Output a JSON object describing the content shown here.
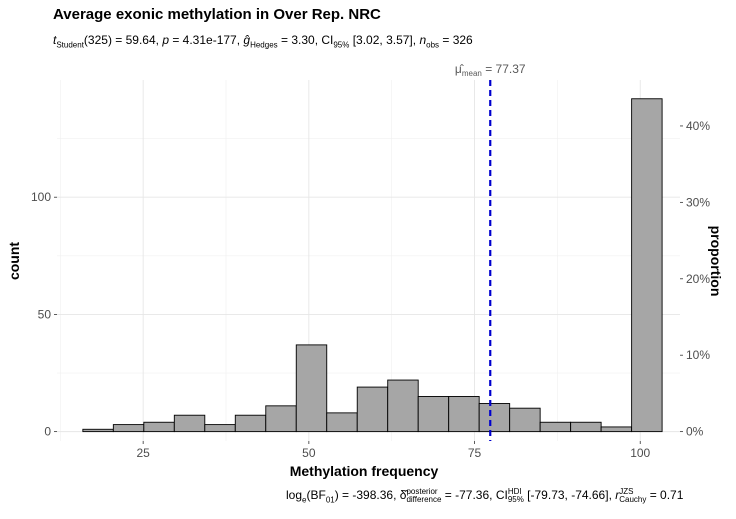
{
  "chart_data": {
    "type": "bar",
    "title": "Average exonic methylation in Over Rep. NRC",
    "subtitle": {
      "t_label": "t",
      "t_sub": "Student",
      "t_rest": "(325) = 59.64, ",
      "p_label": "p",
      "p_rest": " = 4.31e-177, ",
      "g_label": "ĝ",
      "g_sub": "Hedges",
      "g_rest": " = 3.30, CI",
      "ci_sub": "95%",
      "ci_rest": " [3.02, 3.57], ",
      "n_label": "n",
      "n_sub": "obs",
      "n_rest": " = 326"
    },
    "caption": {
      "bf_label": "log",
      "bf_sub": "e",
      "bf_mid": "(BF",
      "bf_sub2": "01",
      "bf_rest": ") = -398.36, ",
      "delta_label": "δ̂",
      "delta_sup": "posterior",
      "delta_sub": "difference",
      "delta_rest": " = -77.36, CI",
      "hdi_sup": "HDI",
      "hdi_sub": "95%",
      "hdi_rest": " [-79.73, -74.66], ",
      "r_label": "r",
      "r_sup": "JZS",
      "r_sub": "Cauchy",
      "r_rest": " = 0.71"
    },
    "xlabel": "Methylation frequency",
    "ylabel": "count",
    "y2label": "proportion",
    "xlim": [
      12,
      106
    ],
    "ylim": [
      -4,
      150
    ],
    "x_ticks": [
      25,
      50,
      75,
      100
    ],
    "x_tick_labels": [
      "25",
      "50",
      "75",
      "100"
    ],
    "y_ticks": [
      0,
      50,
      100
    ],
    "y_tick_labels": [
      "0",
      "50",
      "100"
    ],
    "y2_ticks": [
      0,
      10,
      20,
      30,
      40
    ],
    "y2_tick_labels": [
      "0%",
      "10%",
      "20%",
      "30%",
      "40%"
    ],
    "total_n": 326,
    "bin_width": 4.6,
    "bins": [
      {
        "x": 18.2,
        "count": 1
      },
      {
        "x": 22.8,
        "count": 3
      },
      {
        "x": 27.4,
        "count": 4
      },
      {
        "x": 32.0,
        "count": 7
      },
      {
        "x": 36.6,
        "count": 3
      },
      {
        "x": 41.2,
        "count": 7
      },
      {
        "x": 45.8,
        "count": 11
      },
      {
        "x": 50.4,
        "count": 37
      },
      {
        "x": 55.0,
        "count": 8
      },
      {
        "x": 59.6,
        "count": 19
      },
      {
        "x": 64.2,
        "count": 22
      },
      {
        "x": 68.8,
        "count": 15
      },
      {
        "x": 73.4,
        "count": 15
      },
      {
        "x": 78.0,
        "count": 12
      },
      {
        "x": 82.6,
        "count": 10
      },
      {
        "x": 87.2,
        "count": 4
      },
      {
        "x": 91.8,
        "count": 4
      },
      {
        "x": 96.4,
        "count": 2
      },
      {
        "x": 101.0,
        "count": 142
      }
    ],
    "bar_fill": "#a6a6a6",
    "bar_stroke": "#000000",
    "mean_line": {
      "value": 77.37,
      "color": "#0000cd",
      "label_symbol": "μ̂",
      "label_sub": "mean",
      "label_rest": " = 77.37"
    },
    "grid": true,
    "legend": "none"
  }
}
